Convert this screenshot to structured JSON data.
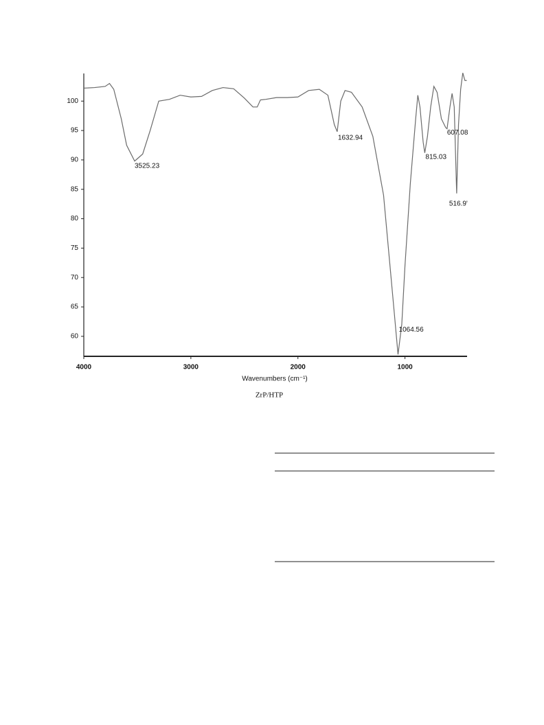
{
  "chart_data": {
    "type": "line",
    "xlabel": "Wavenumbers (cm⁻¹)",
    "caption": "ZrP/HTP",
    "xlim": [
      4000,
      420
    ],
    "ylim": [
      56.6,
      104.7
    ],
    "xticks": [
      4000,
      3000,
      2000,
      1000
    ],
    "yticks": [
      60,
      65,
      70,
      75,
      80,
      85,
      90,
      95,
      100
    ],
    "color": "#6a6a6a",
    "x": [
      4000,
      3900,
      3800,
      3760,
      3720,
      3650,
      3600,
      3525,
      3450,
      3380,
      3300,
      3200,
      3100,
      3000,
      2900,
      2800,
      2700,
      2600,
      2500,
      2420,
      2380,
      2350,
      2300,
      2200,
      2100,
      2000,
      1900,
      1800,
      1720,
      1660,
      1633,
      1600,
      1560,
      1500,
      1400,
      1300,
      1200,
      1150,
      1100,
      1065,
      1030,
      1000,
      950,
      900,
      880,
      860,
      830,
      815,
      790,
      760,
      730,
      700,
      660,
      620,
      607,
      580,
      560,
      540,
      520,
      517,
      500,
      480,
      460,
      440,
      423
    ],
    "values": [
      102.2,
      102.3,
      102.5,
      103,
      102,
      97,
      92.5,
      89.8,
      91,
      95,
      100,
      100.3,
      101,
      100.7,
      100.8,
      101.8,
      102.3,
      102.1,
      100.5,
      99,
      99,
      100.2,
      100.3,
      100.6,
      100.6,
      100.7,
      101.8,
      102,
      101,
      96,
      94.8,
      100,
      101.8,
      101.5,
      99,
      94,
      84,
      74,
      64,
      56.9,
      62,
      72,
      86,
      97,
      101,
      99,
      93,
      91.2,
      94,
      99,
      102.5,
      101.5,
      97,
      95.5,
      95.3,
      99,
      101.3,
      99,
      86,
      84.3,
      96,
      102,
      104.8,
      103.5,
      103.5
    ],
    "annotations": [
      {
        "label": "3525.23",
        "x": 3525.23,
        "y": 89.8
      },
      {
        "label": "1632.94",
        "x": 1632.94,
        "y": 94.8
      },
      {
        "label": "1064.56",
        "x": 1064.56,
        "y": 56.9
      },
      {
        "label": "815.03",
        "x": 815.03,
        "y": 91.2
      },
      {
        "label": "607.08",
        "x": 607.08,
        "y": 95.3
      },
      {
        "label": "516.9'",
        "x": 516.9,
        "y": 84.3
      }
    ]
  }
}
